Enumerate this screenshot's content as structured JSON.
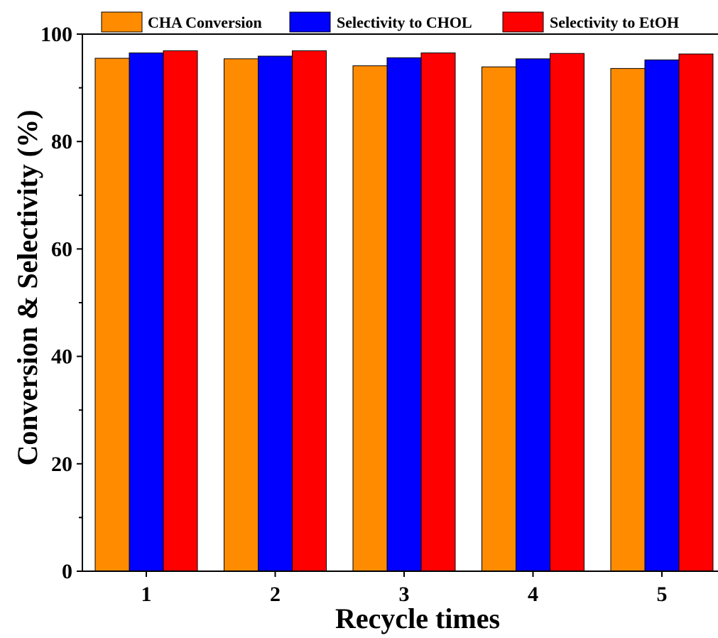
{
  "chart_data": {
    "type": "bar",
    "title": "",
    "xlabel": "Recycle times",
    "ylabel": "Conversion & Selectivity (%)",
    "categories": [
      "1",
      "2",
      "3",
      "4",
      "5"
    ],
    "series": [
      {
        "name": "CHA Conversion",
        "color": "#ff8c00",
        "values": [
          95.5,
          95.4,
          94.1,
          93.9,
          93.6
        ]
      },
      {
        "name": "Selectivity to CHOL",
        "color": "#0000ff",
        "values": [
          96.5,
          95.9,
          95.6,
          95.4,
          95.2
        ]
      },
      {
        "name": "Selectivity to EtOH",
        "color": "#ff0000",
        "values": [
          96.9,
          96.9,
          96.5,
          96.4,
          96.3
        ]
      }
    ],
    "ylim": [
      0,
      100
    ],
    "yticks": [
      "0",
      "20",
      "40",
      "60",
      "80",
      "100"
    ],
    "grid": false,
    "legend_position": "top"
  }
}
